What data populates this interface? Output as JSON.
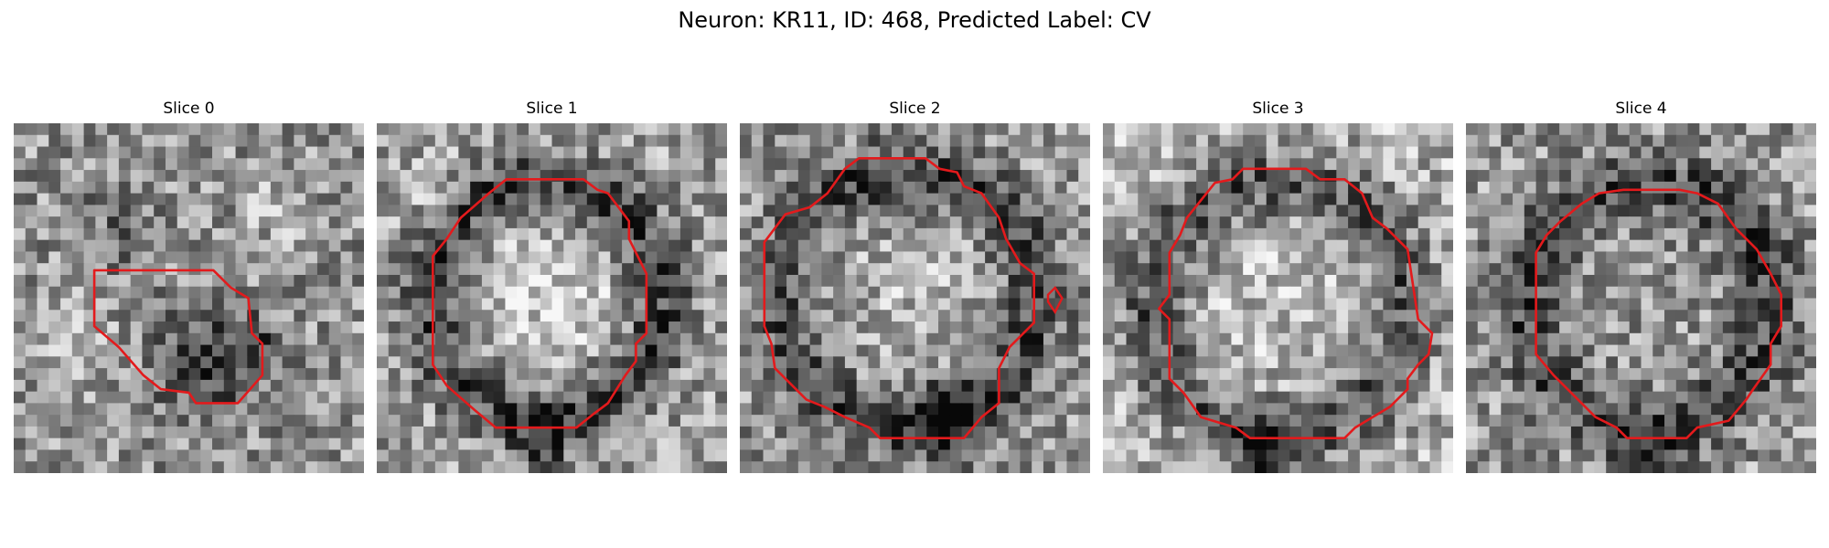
{
  "figure": {
    "title": "Neuron: KR11, ID: 468, Predicted Label: CV"
  },
  "panels": [
    {
      "title": "Slice 0",
      "contour_color": "#e31a1c"
    },
    {
      "title": "Slice 1",
      "contour_color": "#e31a1c"
    },
    {
      "title": "Slice 2",
      "contour_color": "#e31a1c"
    },
    {
      "title": "Slice 3",
      "contour_color": "#e31a1c"
    },
    {
      "title": "Slice 4",
      "contour_color": "#e31a1c"
    }
  ],
  "colormap": "gray"
}
